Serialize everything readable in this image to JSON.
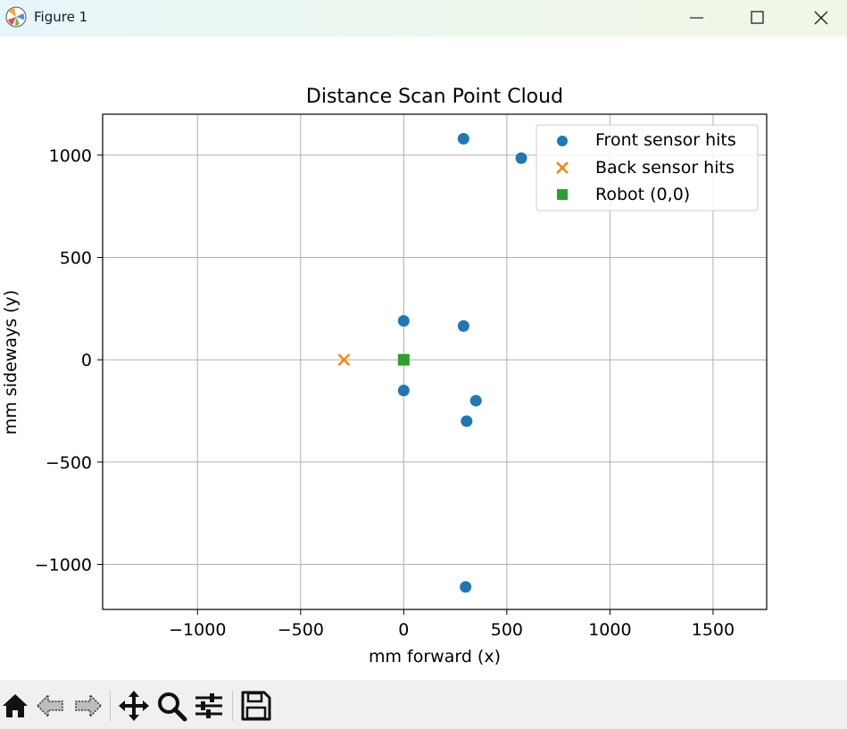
{
  "window": {
    "title": "Figure 1",
    "controls": [
      "minimize",
      "maximize",
      "close"
    ]
  },
  "toolbar": {
    "buttons": [
      {
        "name": "home-icon",
        "action": "Home"
      },
      {
        "name": "back-arrow-icon",
        "action": "Back"
      },
      {
        "name": "forward-arrow-icon",
        "action": "Forward"
      },
      {
        "name": "pan-icon",
        "action": "Pan"
      },
      {
        "name": "zoom-icon",
        "action": "Zoom"
      },
      {
        "name": "configure-subplots-icon",
        "action": "Subplots"
      },
      {
        "name": "save-icon",
        "action": "Save"
      }
    ]
  },
  "chart_data": {
    "type": "scatter",
    "title": "Distance Scan Point Cloud",
    "xlabel": "mm forward (x)",
    "ylabel": "mm sideways (y)",
    "xlim": [
      -1460,
      1760
    ],
    "ylim": [
      -1220,
      1200
    ],
    "xticks": [
      -1000,
      -500,
      0,
      500,
      1000,
      1500
    ],
    "xtick_labels": [
      "−1000",
      "−500",
      "0",
      "500",
      "1000",
      "1500"
    ],
    "yticks": [
      -1000,
      -500,
      0,
      500,
      1000
    ],
    "ytick_labels": [
      "−1000",
      "−500",
      "0",
      "500",
      "1000"
    ],
    "grid": true,
    "legend_position": "top-right",
    "series": [
      {
        "name": "Front sensor hits",
        "marker": "circle",
        "color": "#1f77b4",
        "points": [
          {
            "x": 290,
            "y": 1080
          },
          {
            "x": 570,
            "y": 985
          },
          {
            "x": 0,
            "y": 190
          },
          {
            "x": 290,
            "y": 165
          },
          {
            "x": 0,
            "y": -150
          },
          {
            "x": 350,
            "y": -200
          },
          {
            "x": 305,
            "y": -300
          },
          {
            "x": 300,
            "y": -1110
          }
        ]
      },
      {
        "name": "Back sensor hits",
        "marker": "x",
        "color": "#ff7f0e",
        "points": [
          {
            "x": -290,
            "y": 0
          }
        ]
      },
      {
        "name": "Robot (0,0)",
        "marker": "square",
        "color": "#2ca02c",
        "points": [
          {
            "x": 0,
            "y": 0
          }
        ]
      }
    ]
  }
}
